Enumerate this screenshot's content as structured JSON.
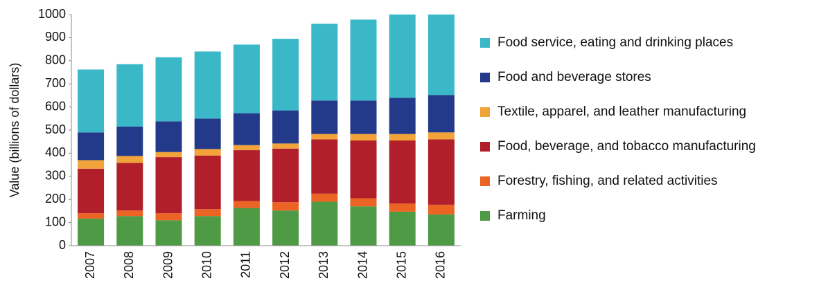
{
  "chart_data": {
    "type": "stacked_bar",
    "y_label": "Value (billions of dollars)",
    "categories": [
      "2007",
      "2008",
      "2009",
      "2010",
      "2011",
      "2012",
      "2013",
      "2014",
      "2015",
      "2016"
    ],
    "series": [
      {
        "name": "Farming",
        "color": "#4e9a45",
        "values": [
          117,
          128,
          110,
          128,
          163,
          152,
          190,
          170,
          147,
          135
        ]
      },
      {
        "name": "Forestry, fishing, and related activities",
        "color": "#eb6424",
        "values": [
          23,
          24,
          30,
          30,
          30,
          36,
          35,
          35,
          35,
          42
        ]
      },
      {
        "name": "Food, beverage, and tobacco manufacturing",
        "color": "#b01f2a",
        "values": [
          193,
          206,
          243,
          232,
          220,
          232,
          235,
          250,
          273,
          283
        ]
      },
      {
        "name": "Textile, apparel, and leather manufacturing",
        "color": "#f2a33a",
        "values": [
          37,
          30,
          22,
          28,
          22,
          22,
          23,
          28,
          28,
          30
        ]
      },
      {
        "name": "Food and beverage stores",
        "color": "#233a8b",
        "values": [
          120,
          127,
          133,
          132,
          138,
          143,
          145,
          145,
          157,
          162
        ]
      },
      {
        "name": "Food service, eating and drinking places",
        "color": "#3ab8c8",
        "values": [
          272,
          270,
          277,
          290,
          297,
          310,
          332,
          350,
          360,
          348
        ]
      }
    ],
    "ylim": [
      0,
      1000
    ],
    "yticks": [
      0,
      100,
      200,
      300,
      400,
      500,
      600,
      700,
      800,
      900,
      1000
    ],
    "grid": false,
    "legend": "right"
  }
}
